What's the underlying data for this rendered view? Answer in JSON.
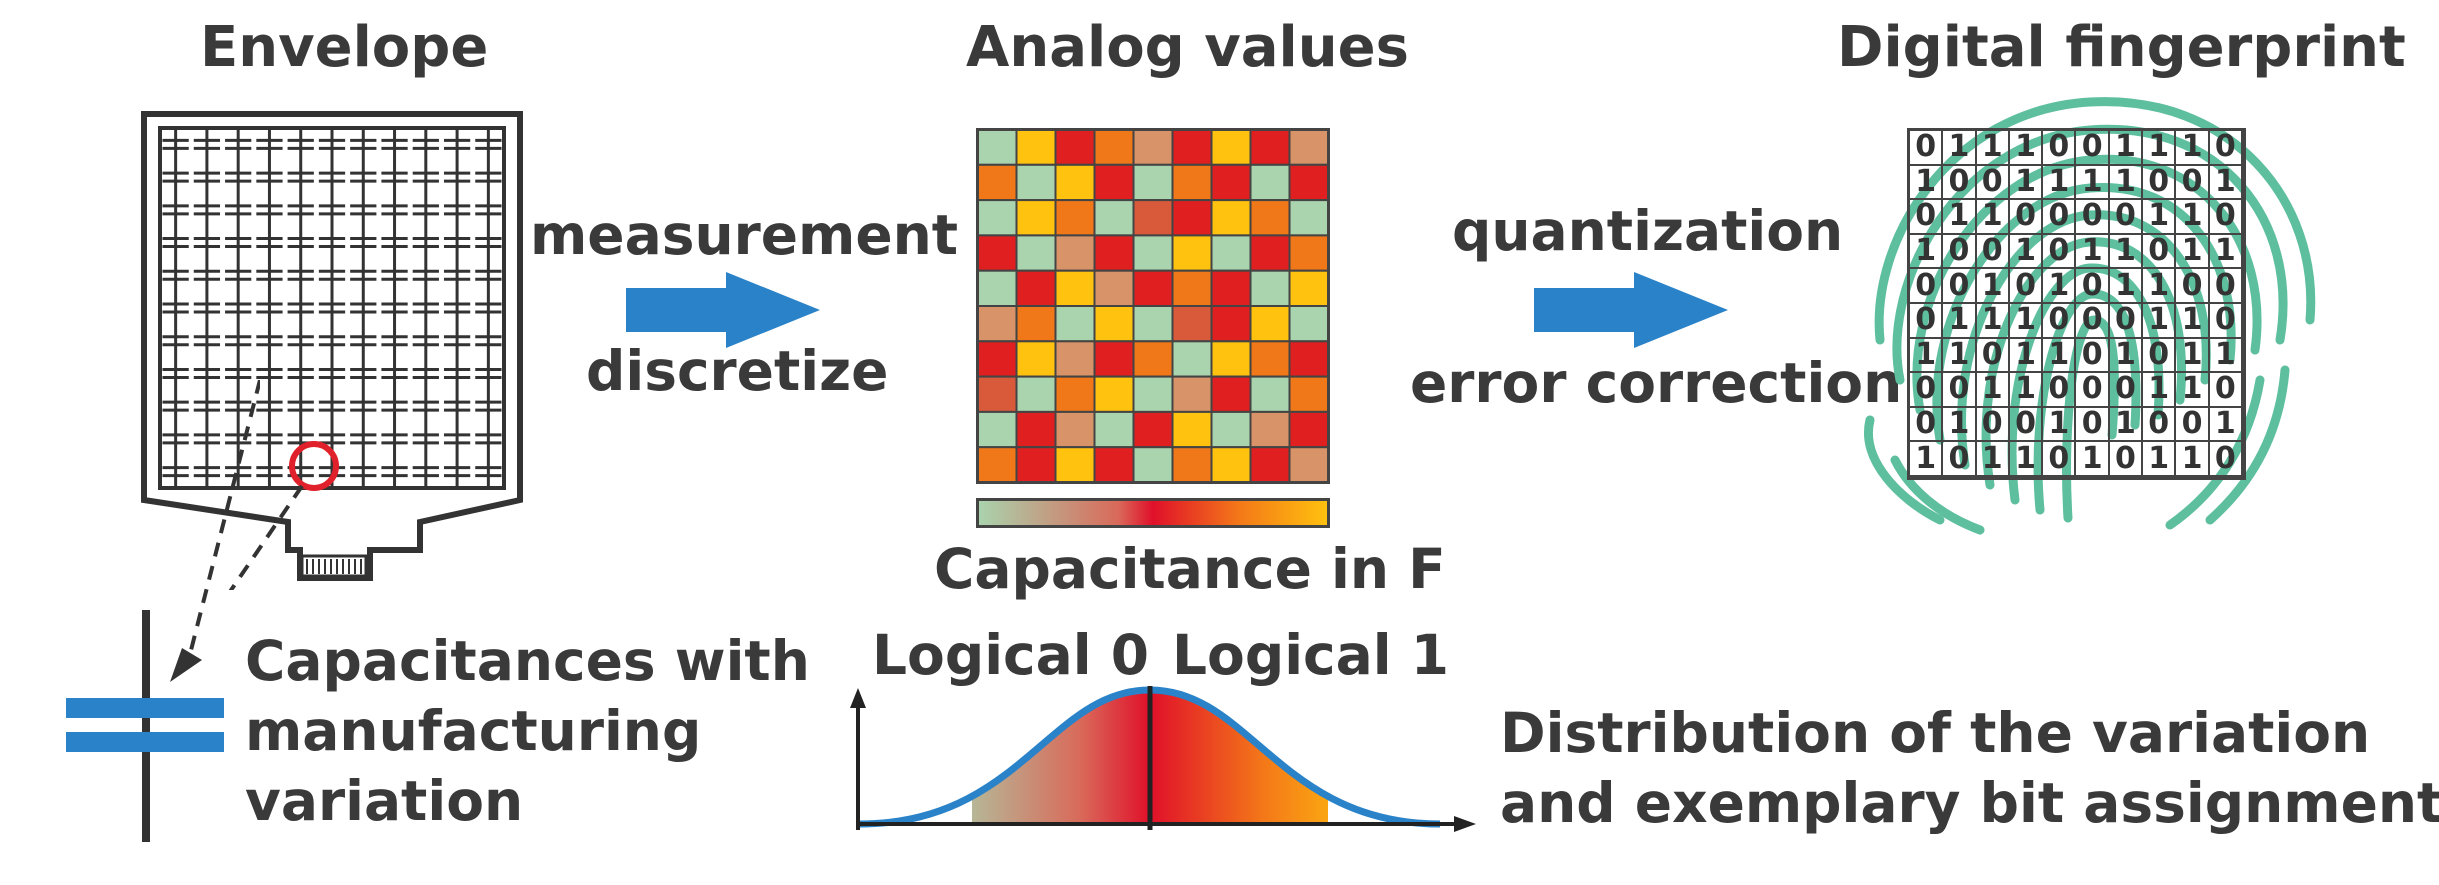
{
  "titles": {
    "envelope": "Envelope",
    "analog": "Analog values",
    "digital": "Digital fingerprint"
  },
  "arrows": {
    "measurement": "measurement",
    "discretize": "discretize",
    "quantization": "quantization",
    "error_correction": "error correction"
  },
  "capacitance_label": "Capacitance in F",
  "capacitor_caption": [
    "Capacitances with",
    "manufacturing",
    "variation"
  ],
  "distribution": {
    "logical0": "Logical 0",
    "logical1": "Logical 1",
    "caption": [
      "Distribution of the variation",
      "and exemplary bit assignment"
    ]
  },
  "colors": {
    "accent_blue": "#2a82c8",
    "marker_red": "#e0202a",
    "fingerprint": "#5dbf9e",
    "heatmap": [
      "#a9d4ae",
      "#e02020",
      "#ffc20e",
      "#f07818",
      "#d89468",
      "#d85a3a",
      "#c9b07a"
    ],
    "gradient": [
      "#a9d4ae",
      "#d96a5a",
      "#e0102a",
      "#f47a18",
      "#ffc20e"
    ]
  },
  "heatmap_cells": [
    [
      0,
      2,
      1,
      3,
      4,
      1,
      2,
      1,
      4
    ],
    [
      3,
      0,
      2,
      1,
      0,
      3,
      1,
      0,
      1
    ],
    [
      0,
      2,
      3,
      0,
      5,
      1,
      2,
      3,
      0
    ],
    [
      1,
      0,
      4,
      1,
      0,
      2,
      0,
      1,
      3
    ],
    [
      0,
      1,
      2,
      4,
      1,
      3,
      1,
      0,
      2
    ],
    [
      4,
      3,
      0,
      2,
      0,
      5,
      1,
      2,
      0
    ],
    [
      1,
      2,
      4,
      1,
      3,
      0,
      2,
      3,
      1
    ],
    [
      5,
      0,
      3,
      2,
      0,
      4,
      1,
      0,
      3
    ],
    [
      0,
      1,
      4,
      0,
      1,
      2,
      0,
      4,
      1
    ],
    [
      3,
      1,
      2,
      1,
      0,
      3,
      2,
      1,
      4
    ]
  ],
  "bits": [
    [
      "0",
      "1",
      "1",
      "1",
      "0",
      "0",
      "1",
      "1",
      "1",
      "0"
    ],
    [
      "1",
      "0",
      "0",
      "1",
      "1",
      "1",
      "1",
      "0",
      "0",
      "1"
    ],
    [
      "0",
      "1",
      "1",
      "0",
      "0",
      "0",
      "0",
      "1",
      "1",
      "0"
    ],
    [
      "1",
      "0",
      "0",
      "1",
      "0",
      "1",
      "1",
      "0",
      "1",
      "1"
    ],
    [
      "0",
      "0",
      "1",
      "0",
      "1",
      "0",
      "1",
      "1",
      "0",
      "0"
    ],
    [
      "0",
      "1",
      "1",
      "1",
      "0",
      "0",
      "0",
      "1",
      "1",
      "0"
    ],
    [
      "1",
      "1",
      "0",
      "1",
      "1",
      "0",
      "1",
      "0",
      "1",
      "1"
    ],
    [
      "0",
      "0",
      "1",
      "1",
      "0",
      "0",
      "0",
      "1",
      "1",
      "0"
    ],
    [
      "0",
      "1",
      "0",
      "0",
      "1",
      "0",
      "1",
      "0",
      "0",
      "1"
    ],
    [
      "1",
      "0",
      "1",
      "1",
      "0",
      "1",
      "0",
      "1",
      "1",
      "0"
    ]
  ]
}
